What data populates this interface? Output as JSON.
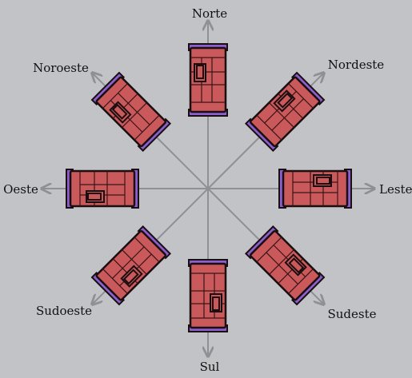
{
  "colors": {
    "background": "#c2c3c7",
    "axis": "#8f9094",
    "sofa_body": "#c9595a",
    "sofa_arm": "#8a5fd0",
    "outline": "#1a0e10"
  },
  "directions": [
    {
      "id": "north",
      "label": "Norte"
    },
    {
      "id": "northeast",
      "label": "Nordeste"
    },
    {
      "id": "east",
      "label": "Leste"
    },
    {
      "id": "southeast",
      "label": "Sudeste"
    },
    {
      "id": "south",
      "label": "Sul"
    },
    {
      "id": "southwest",
      "label": "Sudoeste"
    },
    {
      "id": "west",
      "label": "Oeste"
    },
    {
      "id": "northwest",
      "label": "Noroeste"
    }
  ]
}
